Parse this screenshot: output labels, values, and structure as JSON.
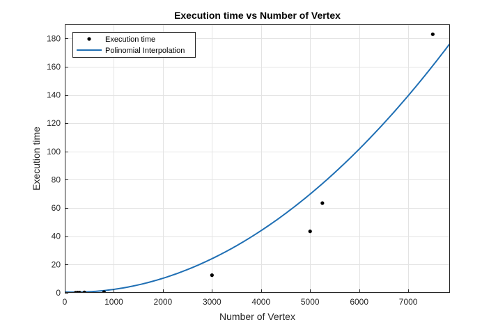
{
  "chart_data": {
    "type": "scatter",
    "title": "Execution time vs Number of Vertex",
    "xlabel": "Number of Vertex",
    "ylabel": "Execution time",
    "xlim": [
      0,
      7850
    ],
    "ylim": [
      0,
      190
    ],
    "xticks": [
      0,
      1000,
      2000,
      3000,
      4000,
      5000,
      6000,
      7000
    ],
    "yticks": [
      0,
      20,
      40,
      60,
      80,
      100,
      120,
      140,
      160,
      180
    ],
    "grid": true,
    "legend_position": "top-left",
    "series": [
      {
        "name": "Execution time",
        "kind": "scatter",
        "color": "#000000",
        "x": [
          220,
          260,
          300,
          400,
          800,
          3000,
          5000,
          5250,
          7500
        ],
        "y": [
          0.1,
          0.2,
          0.2,
          0.3,
          0.5,
          12.5,
          43.5,
          63.5,
          183
        ]
      },
      {
        "name": "Polinomial Interpolation",
        "kind": "line",
        "color": "#1f6fb4",
        "function": "quadratic",
        "coefficients": [
          0.6,
          -0.00115,
          3e-06
        ]
      }
    ]
  }
}
